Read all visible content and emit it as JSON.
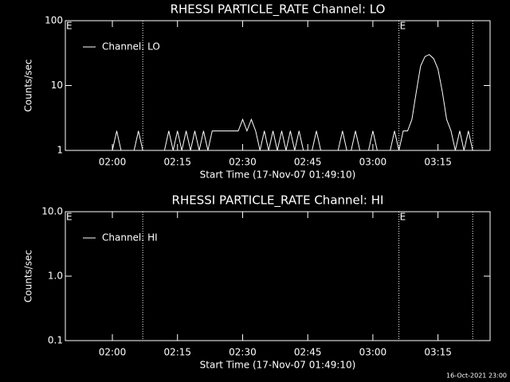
{
  "chart_data": [
    {
      "type": "line",
      "title": "RHESSI PARTICLE_RATE Channel: LO",
      "xlabel": "Start Time (17-Nov-07 01:49:10)",
      "ylabel": "Counts/sec",
      "log_y": true,
      "legend": "top-left",
      "xlim": [
        "01:49:10",
        "03:27"
      ],
      "xticks": [
        "02:00",
        "02:15",
        "02:30",
        "02:45",
        "03:00",
        "03:15"
      ],
      "ylim": [
        1,
        100
      ],
      "yticks": [
        1,
        10,
        100
      ],
      "vlines": [
        "02:07",
        "03:06",
        "03:23"
      ],
      "annotations": [
        {
          "x": "01:49:10",
          "text": "E"
        },
        {
          "x": "03:06",
          "text": "E"
        }
      ],
      "series": [
        {
          "name": "Channel: LO",
          "color": "#ffffff",
          "x": [
            "01:54",
            "02:00",
            "02:01",
            "02:02",
            "02:05",
            "02:06",
            "02:07",
            "02:12",
            "02:13",
            "02:14",
            "02:15",
            "02:16",
            "02:17",
            "02:18",
            "02:19",
            "02:20",
            "02:21",
            "02:22",
            "02:23",
            "02:29",
            "02:30",
            "02:31",
            "02:32",
            "02:33",
            "02:34",
            "02:35",
            "02:36",
            "02:37",
            "02:38",
            "02:39",
            "02:40",
            "02:41",
            "02:42",
            "02:43",
            "02:44",
            "02:46",
            "02:47",
            "02:48",
            "02:52",
            "02:53",
            "02:54",
            "02:55",
            "02:56",
            "02:57",
            "02:59",
            "03:00",
            "03:01",
            "03:04",
            "03:05",
            "03:06",
            "03:07",
            "03:08",
            "03:09",
            "03:10",
            "03:11",
            "03:12",
            "03:13",
            "03:14",
            "03:15",
            "03:16",
            "03:17",
            "03:18",
            "03:19",
            "03:20",
            "03:21",
            "03:22",
            "03:23"
          ],
          "values": [
            1,
            1,
            2,
            1,
            1,
            2,
            1,
            1,
            2,
            1,
            2,
            1,
            2,
            1,
            2,
            1,
            2,
            1,
            2,
            2,
            3,
            2,
            3,
            2,
            1,
            2,
            1,
            2,
            1,
            2,
            1,
            2,
            1,
            2,
            1,
            1,
            2,
            1,
            1,
            2,
            1,
            1,
            2,
            1,
            1,
            2,
            1,
            1,
            2,
            1,
            2,
            2,
            3,
            8,
            20,
            28,
            30,
            26,
            18,
            8,
            3,
            2,
            1,
            2,
            1,
            2,
            1
          ]
        }
      ]
    },
    {
      "type": "line",
      "title": "RHESSI PARTICLE_RATE Channel: HI",
      "xlabel": "Start Time (17-Nov-07 01:49:10)",
      "ylabel": "Counts/sec",
      "log_y": true,
      "legend": "top-left",
      "xlim": [
        "01:49:10",
        "03:27"
      ],
      "xticks": [
        "02:00",
        "02:15",
        "02:30",
        "02:45",
        "03:00",
        "03:15"
      ],
      "ylim": [
        0.1,
        10
      ],
      "yticks": [
        0.1,
        {
          "value": 1,
          "label": "1.0"
        },
        {
          "value": 10,
          "label": "10.0"
        }
      ],
      "vlines": [
        "02:07",
        "03:06",
        "03:23"
      ],
      "annotations": [
        {
          "x": "01:49:10",
          "text": "E"
        },
        {
          "x": "03:06",
          "text": "E"
        }
      ],
      "series": [
        {
          "name": "Channel: HI",
          "color": "#ffffff",
          "x": [],
          "values": []
        }
      ]
    }
  ],
  "footer": "16-Oct-2021 23:00"
}
